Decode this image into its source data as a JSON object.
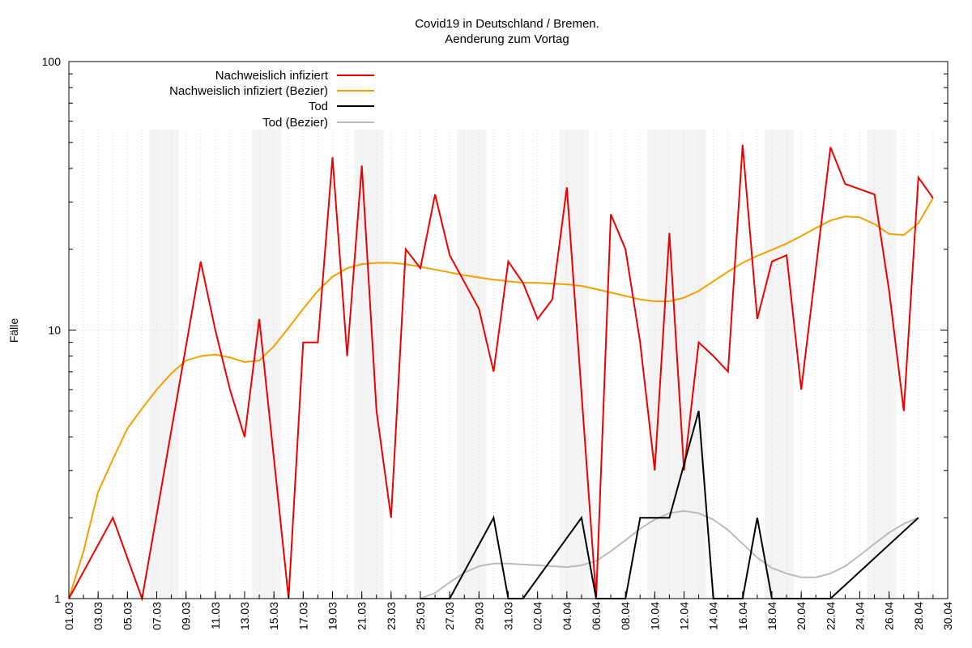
{
  "chart_data": {
    "type": "line",
    "title": "Covid19 in Deutschland / Bremen.",
    "subtitle": "Aenderung zum Vortag",
    "ylabel": "Fälle",
    "xlabel": "",
    "y_scale": "log",
    "ylim": [
      1,
      100
    ],
    "y_ticks": [
      "1",
      "10",
      "100"
    ],
    "x_range": [
      "01.03",
      "30.04"
    ],
    "x_tick_labels": [
      "01.03",
      "03.03",
      "05.03",
      "07.03",
      "09.03",
      "11.03",
      "13.03",
      "15.03",
      "17.03",
      "19.03",
      "21.03",
      "23.03",
      "25.03",
      "27.03",
      "29.03",
      "31.03",
      "02.04",
      "04.04",
      "06.04",
      "08.04",
      "10.04",
      "12.04",
      "14.04",
      "16.04",
      "18.04",
      "20.04",
      "22.04",
      "24.04",
      "26.04",
      "28.04",
      "30.04"
    ],
    "legend_position": "top-left",
    "grid": true,
    "weekend_shading": [
      [
        "07.03",
        "08.03"
      ],
      [
        "14.03",
        "15.03"
      ],
      [
        "21.03",
        "22.03"
      ],
      [
        "28.03",
        "29.03"
      ],
      [
        "04.04",
        "05.04"
      ],
      [
        "10.04",
        "13.04"
      ],
      [
        "18.04",
        "19.04"
      ],
      [
        "25.04",
        "26.04"
      ]
    ],
    "series": [
      {
        "name": "Nachweislich infiziert",
        "color": "#ee0000",
        "points": [
          [
            "01.03",
            1
          ],
          [
            "04.03",
            2
          ],
          [
            "06.03",
            1
          ],
          [
            "10.03",
            18
          ],
          [
            "11.03",
            10
          ],
          [
            "12.03",
            6
          ],
          [
            "13.03",
            4
          ],
          [
            "14.03",
            11
          ],
          [
            "16.03",
            1
          ],
          [
            "17.03",
            9
          ],
          [
            "18.03",
            9
          ],
          [
            "19.03",
            44
          ],
          [
            "20.03",
            8
          ],
          [
            "21.03",
            41
          ],
          [
            "22.03",
            5
          ],
          [
            "23.03",
            2
          ],
          [
            "24.03",
            20
          ],
          [
            "25.03",
            17
          ],
          [
            "26.03",
            32
          ],
          [
            "27.03",
            19
          ],
          [
            "29.03",
            12
          ],
          [
            "30.03",
            7
          ],
          [
            "31.03",
            18
          ],
          [
            "01.04",
            15
          ],
          [
            "02.04",
            11
          ],
          [
            "03.04",
            13
          ],
          [
            "04.04",
            34
          ],
          [
            "06.04",
            1
          ],
          [
            "07.04",
            27
          ],
          [
            "08.04",
            20
          ],
          [
            "09.04",
            9
          ],
          [
            "10.04",
            3
          ],
          [
            "11.04",
            23
          ],
          [
            "12.04",
            3
          ],
          [
            "13.04",
            9
          ],
          [
            "14.04",
            8
          ],
          [
            "15.04",
            7
          ],
          [
            "16.04",
            49
          ],
          [
            "17.04",
            11
          ],
          [
            "18.04",
            18
          ],
          [
            "19.04",
            19
          ],
          [
            "20.04",
            6
          ],
          [
            "22.04",
            48
          ],
          [
            "23.04",
            35
          ],
          [
            "25.04",
            32
          ],
          [
            "26.04",
            14
          ],
          [
            "27.04",
            5
          ],
          [
            "28.04",
            37
          ],
          [
            "29.04",
            31
          ]
        ]
      },
      {
        "name": "Nachweislich infiziert (Bezier)",
        "color": "#f5a000",
        "points": [
          [
            "01.03",
            1
          ],
          [
            "02.03",
            1.5
          ],
          [
            "03.03",
            2.5
          ],
          [
            "04.03",
            3.3
          ],
          [
            "05.03",
            4.3
          ],
          [
            "06.03",
            5.1
          ],
          [
            "07.03",
            6.0
          ],
          [
            "08.03",
            6.9
          ],
          [
            "09.03",
            7.7
          ],
          [
            "10.03",
            8.0
          ],
          [
            "11.03",
            8.1
          ],
          [
            "12.03",
            7.9
          ],
          [
            "13.03",
            7.6
          ],
          [
            "14.03",
            7.7
          ],
          [
            "15.03",
            8.7
          ],
          [
            "16.03",
            10.2
          ],
          [
            "17.03",
            12.0
          ],
          [
            "18.03",
            14.0
          ],
          [
            "19.03",
            15.8
          ],
          [
            "20.03",
            17.0
          ],
          [
            "21.03",
            17.6
          ],
          [
            "22.03",
            17.8
          ],
          [
            "23.03",
            17.8
          ],
          [
            "24.03",
            17.6
          ],
          [
            "25.03",
            17.2
          ],
          [
            "26.03",
            16.8
          ],
          [
            "27.03",
            16.4
          ],
          [
            "28.03",
            16.0
          ],
          [
            "29.03",
            15.7
          ],
          [
            "30.03",
            15.4
          ],
          [
            "31.03",
            15.2
          ],
          [
            "01.04",
            15.0
          ],
          [
            "02.04",
            15.0
          ],
          [
            "03.04",
            14.9
          ],
          [
            "04.04",
            14.8
          ],
          [
            "05.04",
            14.6
          ],
          [
            "06.04",
            14.2
          ],
          [
            "07.04",
            13.8
          ],
          [
            "08.04",
            13.4
          ],
          [
            "09.04",
            13.0
          ],
          [
            "10.04",
            12.8
          ],
          [
            "11.04",
            12.8
          ],
          [
            "12.04",
            13.2
          ],
          [
            "13.04",
            14.0
          ],
          [
            "14.04",
            15.2
          ],
          [
            "15.04",
            16.5
          ],
          [
            "16.04",
            17.8
          ],
          [
            "17.04",
            18.9
          ],
          [
            "18.04",
            19.9
          ],
          [
            "19.04",
            21.0
          ],
          [
            "20.04",
            22.4
          ],
          [
            "21.04",
            24.0
          ],
          [
            "22.04",
            25.6
          ],
          [
            "23.04",
            26.5
          ],
          [
            "24.04",
            26.3
          ],
          [
            "25.04",
            24.8
          ],
          [
            "26.04",
            22.8
          ],
          [
            "27.04",
            22.6
          ],
          [
            "28.04",
            25.0
          ],
          [
            "29.04",
            31.0
          ]
        ]
      },
      {
        "name": "Tod",
        "color": "#000000",
        "points": [
          [
            "25.03",
            1
          ],
          [
            "27.03",
            1
          ],
          [
            "30.03",
            2
          ],
          [
            "31.03",
            1
          ],
          [
            "01.04",
            1
          ],
          [
            "05.04",
            2
          ],
          [
            "06.04",
            1
          ],
          [
            "08.04",
            1
          ],
          [
            "09.04",
            2
          ],
          [
            "11.04",
            2
          ],
          [
            "13.04",
            5
          ],
          [
            "14.04",
            1
          ],
          [
            "16.04",
            1
          ],
          [
            "17.04",
            2
          ],
          [
            "18.04",
            1
          ],
          [
            "22.04",
            1
          ],
          [
            "28.04",
            2
          ]
        ]
      },
      {
        "name": "Tod (Bezier)",
        "color": "#bbbbbb",
        "points": [
          [
            "25.03",
            1
          ],
          [
            "26.03",
            1.05
          ],
          [
            "27.03",
            1.15
          ],
          [
            "28.03",
            1.25
          ],
          [
            "29.03",
            1.32
          ],
          [
            "30.03",
            1.35
          ],
          [
            "31.03",
            1.35
          ],
          [
            "01.04",
            1.34
          ],
          [
            "02.04",
            1.33
          ],
          [
            "03.04",
            1.32
          ],
          [
            "04.04",
            1.31
          ],
          [
            "05.04",
            1.33
          ],
          [
            "06.04",
            1.38
          ],
          [
            "07.04",
            1.5
          ],
          [
            "08.04",
            1.65
          ],
          [
            "09.04",
            1.82
          ],
          [
            "10.04",
            1.97
          ],
          [
            "11.04",
            2.08
          ],
          [
            "12.04",
            2.12
          ],
          [
            "13.04",
            2.08
          ],
          [
            "14.04",
            1.97
          ],
          [
            "15.04",
            1.8
          ],
          [
            "16.04",
            1.6
          ],
          [
            "17.04",
            1.42
          ],
          [
            "18.04",
            1.3
          ],
          [
            "19.04",
            1.24
          ],
          [
            "20.04",
            1.2
          ],
          [
            "21.04",
            1.2
          ],
          [
            "22.04",
            1.24
          ],
          [
            "23.04",
            1.32
          ],
          [
            "24.04",
            1.45
          ],
          [
            "25.04",
            1.6
          ],
          [
            "26.04",
            1.76
          ],
          [
            "27.04",
            1.9
          ],
          [
            "28.04",
            2.0
          ]
        ]
      }
    ]
  }
}
